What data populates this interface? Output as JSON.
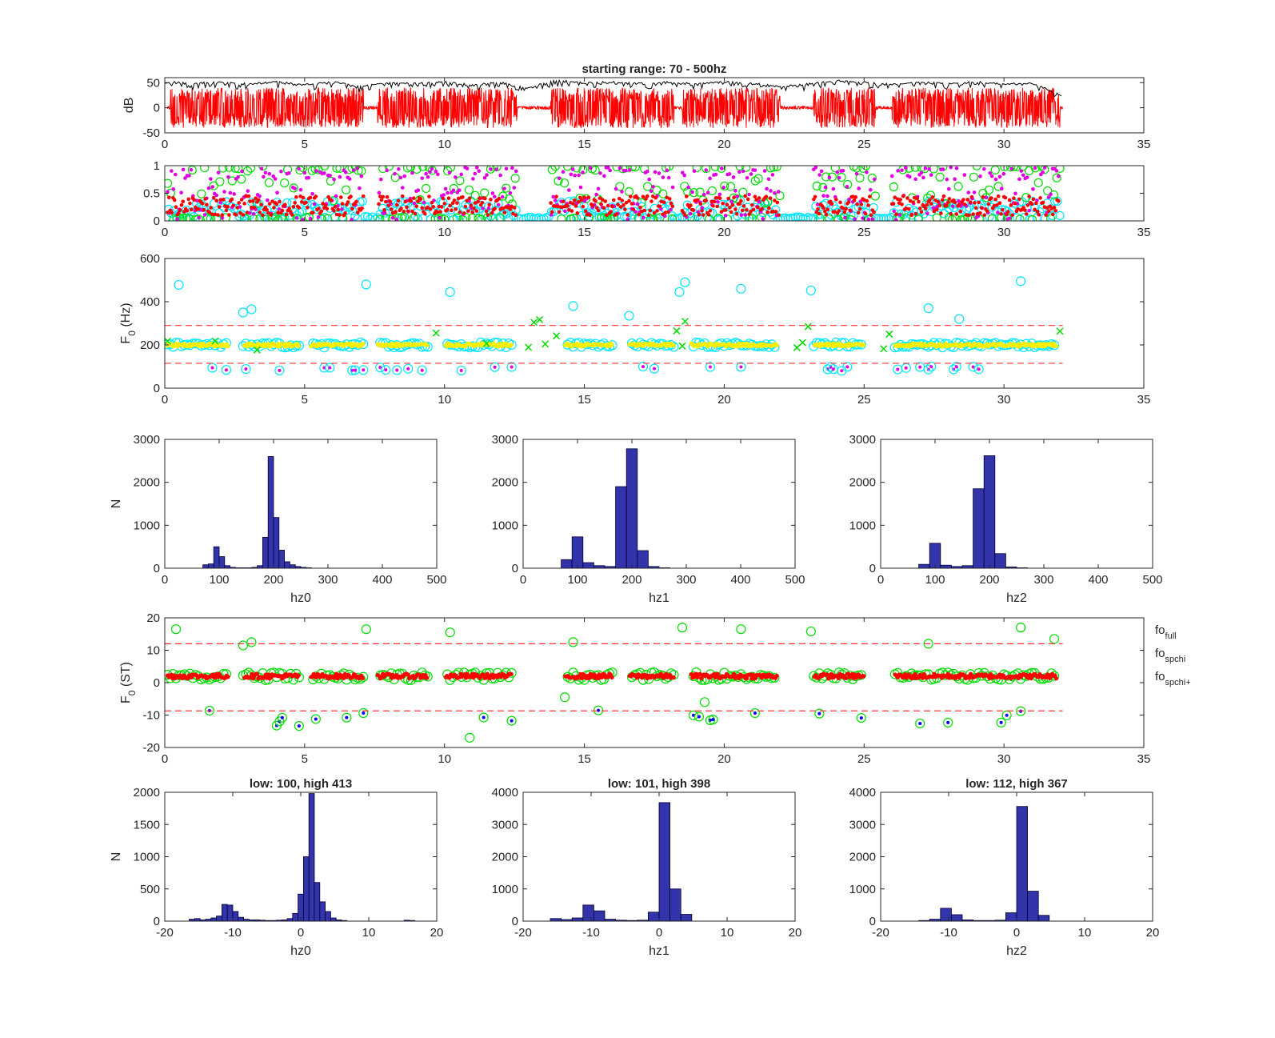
{
  "figure_title": "starting range: 70 - 500hz",
  "colors": {
    "waveform": "#ff0000",
    "envelope": "#000000",
    "candidate_cyan": "#00e6ff",
    "candidate_green": "#00dd00",
    "candidate_magenta": "#e000e0",
    "track_yellow": "#ffee00",
    "track_red": "#ff0000",
    "dot_blue": "#0000ff",
    "limit_line": "#ff3333",
    "histogram_bar": "#3333aa"
  },
  "chart_data": [
    {
      "id": "waveform",
      "type": "line",
      "title": "starting range: 70 - 500hz",
      "xlabel": "",
      "ylabel": "dB",
      "xlim": [
        0,
        35
      ],
      "ylim": [
        -50,
        60
      ],
      "xticks": [
        "0",
        "5",
        "10",
        "15",
        "20",
        "25",
        "30",
        "35"
      ],
      "yticks": [
        "50",
        "0",
        "-50"
      ],
      "series": [
        {
          "role": "envelope",
          "x": [
            0,
            1,
            2,
            3,
            4,
            5,
            6,
            7,
            8,
            9,
            10,
            11,
            12,
            13,
            14,
            15,
            16,
            17,
            18,
            19,
            20,
            21,
            22,
            23,
            24,
            25,
            26,
            27,
            28,
            29,
            30,
            31,
            32.1
          ],
          "y": [
            50,
            48,
            50,
            46,
            50,
            45,
            50,
            42,
            49,
            47,
            50,
            44,
            50,
            38,
            54,
            48,
            50,
            47,
            50,
            46,
            50,
            48,
            40,
            46,
            53,
            49,
            45,
            50,
            47,
            50,
            46,
            48,
            25
          ]
        },
        {
          "role": "waveform",
          "segments": [
            [
              0.2,
              7.1
            ],
            [
              7.6,
              12.6
            ],
            [
              13.8,
              18.2
            ],
            [
              18.5,
              22.0
            ],
            [
              23.2,
              25.4
            ],
            [
              26.0,
              32.0
            ]
          ],
          "ylim": [
            -45,
            45
          ]
        }
      ]
    },
    {
      "id": "voicing",
      "type": "scatter",
      "xlim": [
        0,
        35
      ],
      "ylim": [
        0,
        1
      ],
      "xticks": [
        "0",
        "5",
        "10",
        "15",
        "20",
        "25",
        "30",
        "35"
      ],
      "yticks": [
        "1",
        "0.5",
        "0"
      ],
      "segments": [
        [
          0.1,
          7.1
        ],
        [
          7.6,
          12.6
        ],
        [
          13.8,
          18.2
        ],
        [
          18.5,
          22.0
        ],
        [
          23.2,
          25.4
        ],
        [
          26.0,
          32.0
        ]
      ]
    },
    {
      "id": "f0_hz",
      "type": "scatter",
      "xlabel": "",
      "ylabel": "F0 (Hz)",
      "xlim": [
        0,
        35
      ],
      "ylim": [
        0,
        600
      ],
      "xticks": [
        "0",
        "5",
        "10",
        "15",
        "20",
        "25",
        "30",
        "35"
      ],
      "yticks": [
        "600",
        "400",
        "200",
        "0"
      ],
      "limit_lines": [
        290,
        115
      ],
      "track": {
        "segments": [
          [
            0.1,
            2.3
          ],
          [
            2.8,
            4.8
          ],
          [
            5.2,
            7.1
          ],
          [
            7.6,
            9.4
          ],
          [
            10.0,
            12.4
          ],
          [
            14.3,
            16.0
          ],
          [
            16.6,
            18.2
          ],
          [
            18.8,
            21.9
          ],
          [
            23.2,
            25.0
          ],
          [
            26.1,
            31.9
          ]
        ],
        "value": 200
      },
      "outliers": [
        {
          "x": 0.5,
          "y": 478
        },
        {
          "x": 7.2,
          "y": 480
        },
        {
          "x": 10.2,
          "y": 445
        },
        {
          "x": 18.6,
          "y": 490
        },
        {
          "x": 20.6,
          "y": 460
        },
        {
          "x": 23.1,
          "y": 452
        },
        {
          "x": 30.6,
          "y": 495
        },
        {
          "x": 3.1,
          "y": 365
        },
        {
          "x": 2.8,
          "y": 350
        },
        {
          "x": 14.6,
          "y": 380
        },
        {
          "x": 16.6,
          "y": 335
        },
        {
          "x": 27.3,
          "y": 370
        },
        {
          "x": 28.4,
          "y": 320
        },
        {
          "x": 18.4,
          "y": 445
        }
      ]
    },
    {
      "id": "hist_hz0",
      "type": "bar",
      "xlabel": "hz0",
      "ylabel": "N",
      "xlim": [
        0,
        500
      ],
      "ylim": [
        0,
        3000
      ],
      "xticks": [
        "0",
        "100",
        "200",
        "300",
        "400",
        "500"
      ],
      "yticks": [
        "3000",
        "2000",
        "1000",
        "0"
      ],
      "bin_width": 10,
      "bins": [
        70,
        80,
        90,
        100,
        110,
        120,
        130,
        140,
        150,
        160,
        170,
        180,
        190,
        200,
        210,
        220,
        230,
        240,
        250,
        260
      ],
      "values": [
        80,
        100,
        500,
        270,
        60,
        20,
        10,
        10,
        10,
        20,
        60,
        720,
        2600,
        1180,
        420,
        150,
        80,
        40,
        20,
        10
      ]
    },
    {
      "id": "hist_hz1",
      "type": "bar",
      "xlabel": "hz1",
      "ylabel": "",
      "xlim": [
        0,
        500
      ],
      "ylim": [
        0,
        3000
      ],
      "xticks": [
        "0",
        "100",
        "200",
        "300",
        "400",
        "500"
      ],
      "yticks": [
        "3000",
        "2000",
        "1000",
        "0"
      ],
      "bin_width": 20,
      "bins": [
        70,
        90,
        110,
        130,
        150,
        170,
        190,
        210,
        230,
        250
      ],
      "values": [
        200,
        730,
        130,
        60,
        40,
        1900,
        2780,
        410,
        40,
        10
      ]
    },
    {
      "id": "hist_hz2",
      "type": "bar",
      "xlabel": "hz2",
      "ylabel": "",
      "xlim": [
        0,
        500
      ],
      "ylim": [
        0,
        3000
      ],
      "xticks": [
        "0",
        "100",
        "200",
        "300",
        "400",
        "500"
      ],
      "yticks": [
        "3000",
        "2000",
        "1000",
        "0"
      ],
      "bin_width": 20,
      "bins": [
        70,
        90,
        110,
        130,
        150,
        170,
        190,
        210,
        230,
        250
      ],
      "values": [
        90,
        580,
        70,
        40,
        60,
        1850,
        2620,
        340,
        30,
        10
      ]
    },
    {
      "id": "f0_st",
      "type": "scatter",
      "ylabel": "F0 (ST)",
      "xlim": [
        0,
        35
      ],
      "ylim": [
        -20,
        20
      ],
      "xticks": [
        "0",
        "5",
        "10",
        "15",
        "20",
        "25",
        "30",
        "35"
      ],
      "yticks": [
        "20",
        "10",
        "0",
        "-10",
        "-20"
      ],
      "limit_lines": [
        12,
        -8.7
      ],
      "track": {
        "segments": [
          [
            0.1,
            2.3
          ],
          [
            2.8,
            4.8
          ],
          [
            5.2,
            7.1
          ],
          [
            7.6,
            9.4
          ],
          [
            10.0,
            12.4
          ],
          [
            14.3,
            16.0
          ],
          [
            16.6,
            18.2
          ],
          [
            18.8,
            21.9
          ],
          [
            23.2,
            25.0
          ],
          [
            26.1,
            31.9
          ]
        ],
        "value": 2
      },
      "outliers": [
        {
          "x": 0.4,
          "y": 16.5
        },
        {
          "x": 7.2,
          "y": 16.5
        },
        {
          "x": 10.2,
          "y": 15.5
        },
        {
          "x": 18.5,
          "y": 17
        },
        {
          "x": 20.6,
          "y": 16.5
        },
        {
          "x": 23.1,
          "y": 15.8
        },
        {
          "x": 30.6,
          "y": 17
        },
        {
          "x": 2.8,
          "y": 11.5
        },
        {
          "x": 3.1,
          "y": 12.5
        },
        {
          "x": 14.6,
          "y": 12.5
        },
        {
          "x": 27.3,
          "y": 12
        },
        {
          "x": 31.8,
          "y": 13.5
        },
        {
          "x": 10.9,
          "y": -17
        },
        {
          "x": 14.3,
          "y": -4.5
        },
        {
          "x": 19.3,
          "y": -6
        }
      ],
      "legend": [
        {
          "base": "fo",
          "sub": "full"
        },
        {
          "base": "fo",
          "sub": "spchi"
        },
        {
          "base": "fo",
          "sub": "spchi+"
        }
      ]
    },
    {
      "id": "hist_st0",
      "type": "bar",
      "title": "low: 100, high 413",
      "xlabel": "hz0",
      "ylabel": "N",
      "xlim": [
        -20,
        20
      ],
      "ylim": [
        0,
        2000
      ],
      "xticks": [
        "-20",
        "-10",
        "0",
        "10",
        "20"
      ],
      "yticks": [
        "2000",
        "1500",
        "1000",
        "500",
        "0"
      ],
      "bin_width": 0.8,
      "bins": [
        -16.4,
        -15.6,
        -14.8,
        -14.0,
        -13.2,
        -12.4,
        -11.6,
        -10.8,
        -10.0,
        -9.2,
        -8.4,
        -7.6,
        -6.8,
        -6.0,
        -5.2,
        -4.4,
        -3.6,
        -2.8,
        -2.0,
        -1.2,
        -0.4,
        0.4,
        1.2,
        2.0,
        2.8,
        3.6,
        4.4,
        5.2,
        6.0,
        15.2,
        16.0
      ],
      "values": [
        30,
        40,
        20,
        30,
        50,
        80,
        260,
        250,
        150,
        60,
        30,
        20,
        20,
        15,
        10,
        10,
        15,
        20,
        40,
        120,
        420,
        1000,
        1980,
        600,
        300,
        150,
        50,
        20,
        10,
        15,
        10
      ]
    },
    {
      "id": "hist_st1",
      "type": "bar",
      "title": "low: 101, high 398",
      "xlabel": "hz1",
      "ylabel": "",
      "xlim": [
        -20,
        20
      ],
      "ylim": [
        0,
        4000
      ],
      "xticks": [
        "-20",
        "-10",
        "0",
        "10",
        "20"
      ],
      "yticks": [
        "4000",
        "3000",
        "2000",
        "1000",
        "0"
      ],
      "bin_width": 1.6,
      "bins": [
        -16.0,
        -14.4,
        -12.8,
        -11.2,
        -9.6,
        -8.0,
        -6.4,
        -4.8,
        -3.2,
        -1.6,
        0.0,
        1.6,
        3.2
      ],
      "values": [
        80,
        50,
        100,
        500,
        320,
        60,
        30,
        20,
        30,
        280,
        3680,
        1000,
        210
      ]
    },
    {
      "id": "hist_st2",
      "type": "bar",
      "title": "low: 112, high 367",
      "xlabel": "hz2",
      "ylabel": "",
      "xlim": [
        -20,
        20
      ],
      "ylim": [
        0,
        4000
      ],
      "xticks": [
        "-20",
        "-10",
        "0",
        "10",
        "20"
      ],
      "yticks": [
        "4000",
        "3000",
        "2000",
        "1000",
        "0"
      ],
      "bin_width": 1.6,
      "bins": [
        -14.4,
        -12.8,
        -11.2,
        -9.6,
        -8.0,
        -6.4,
        -4.8,
        -3.2,
        -1.6,
        0.0,
        1.6,
        3.2
      ],
      "values": [
        20,
        60,
        400,
        200,
        40,
        20,
        20,
        30,
        260,
        3560,
        930,
        180
      ]
    }
  ]
}
